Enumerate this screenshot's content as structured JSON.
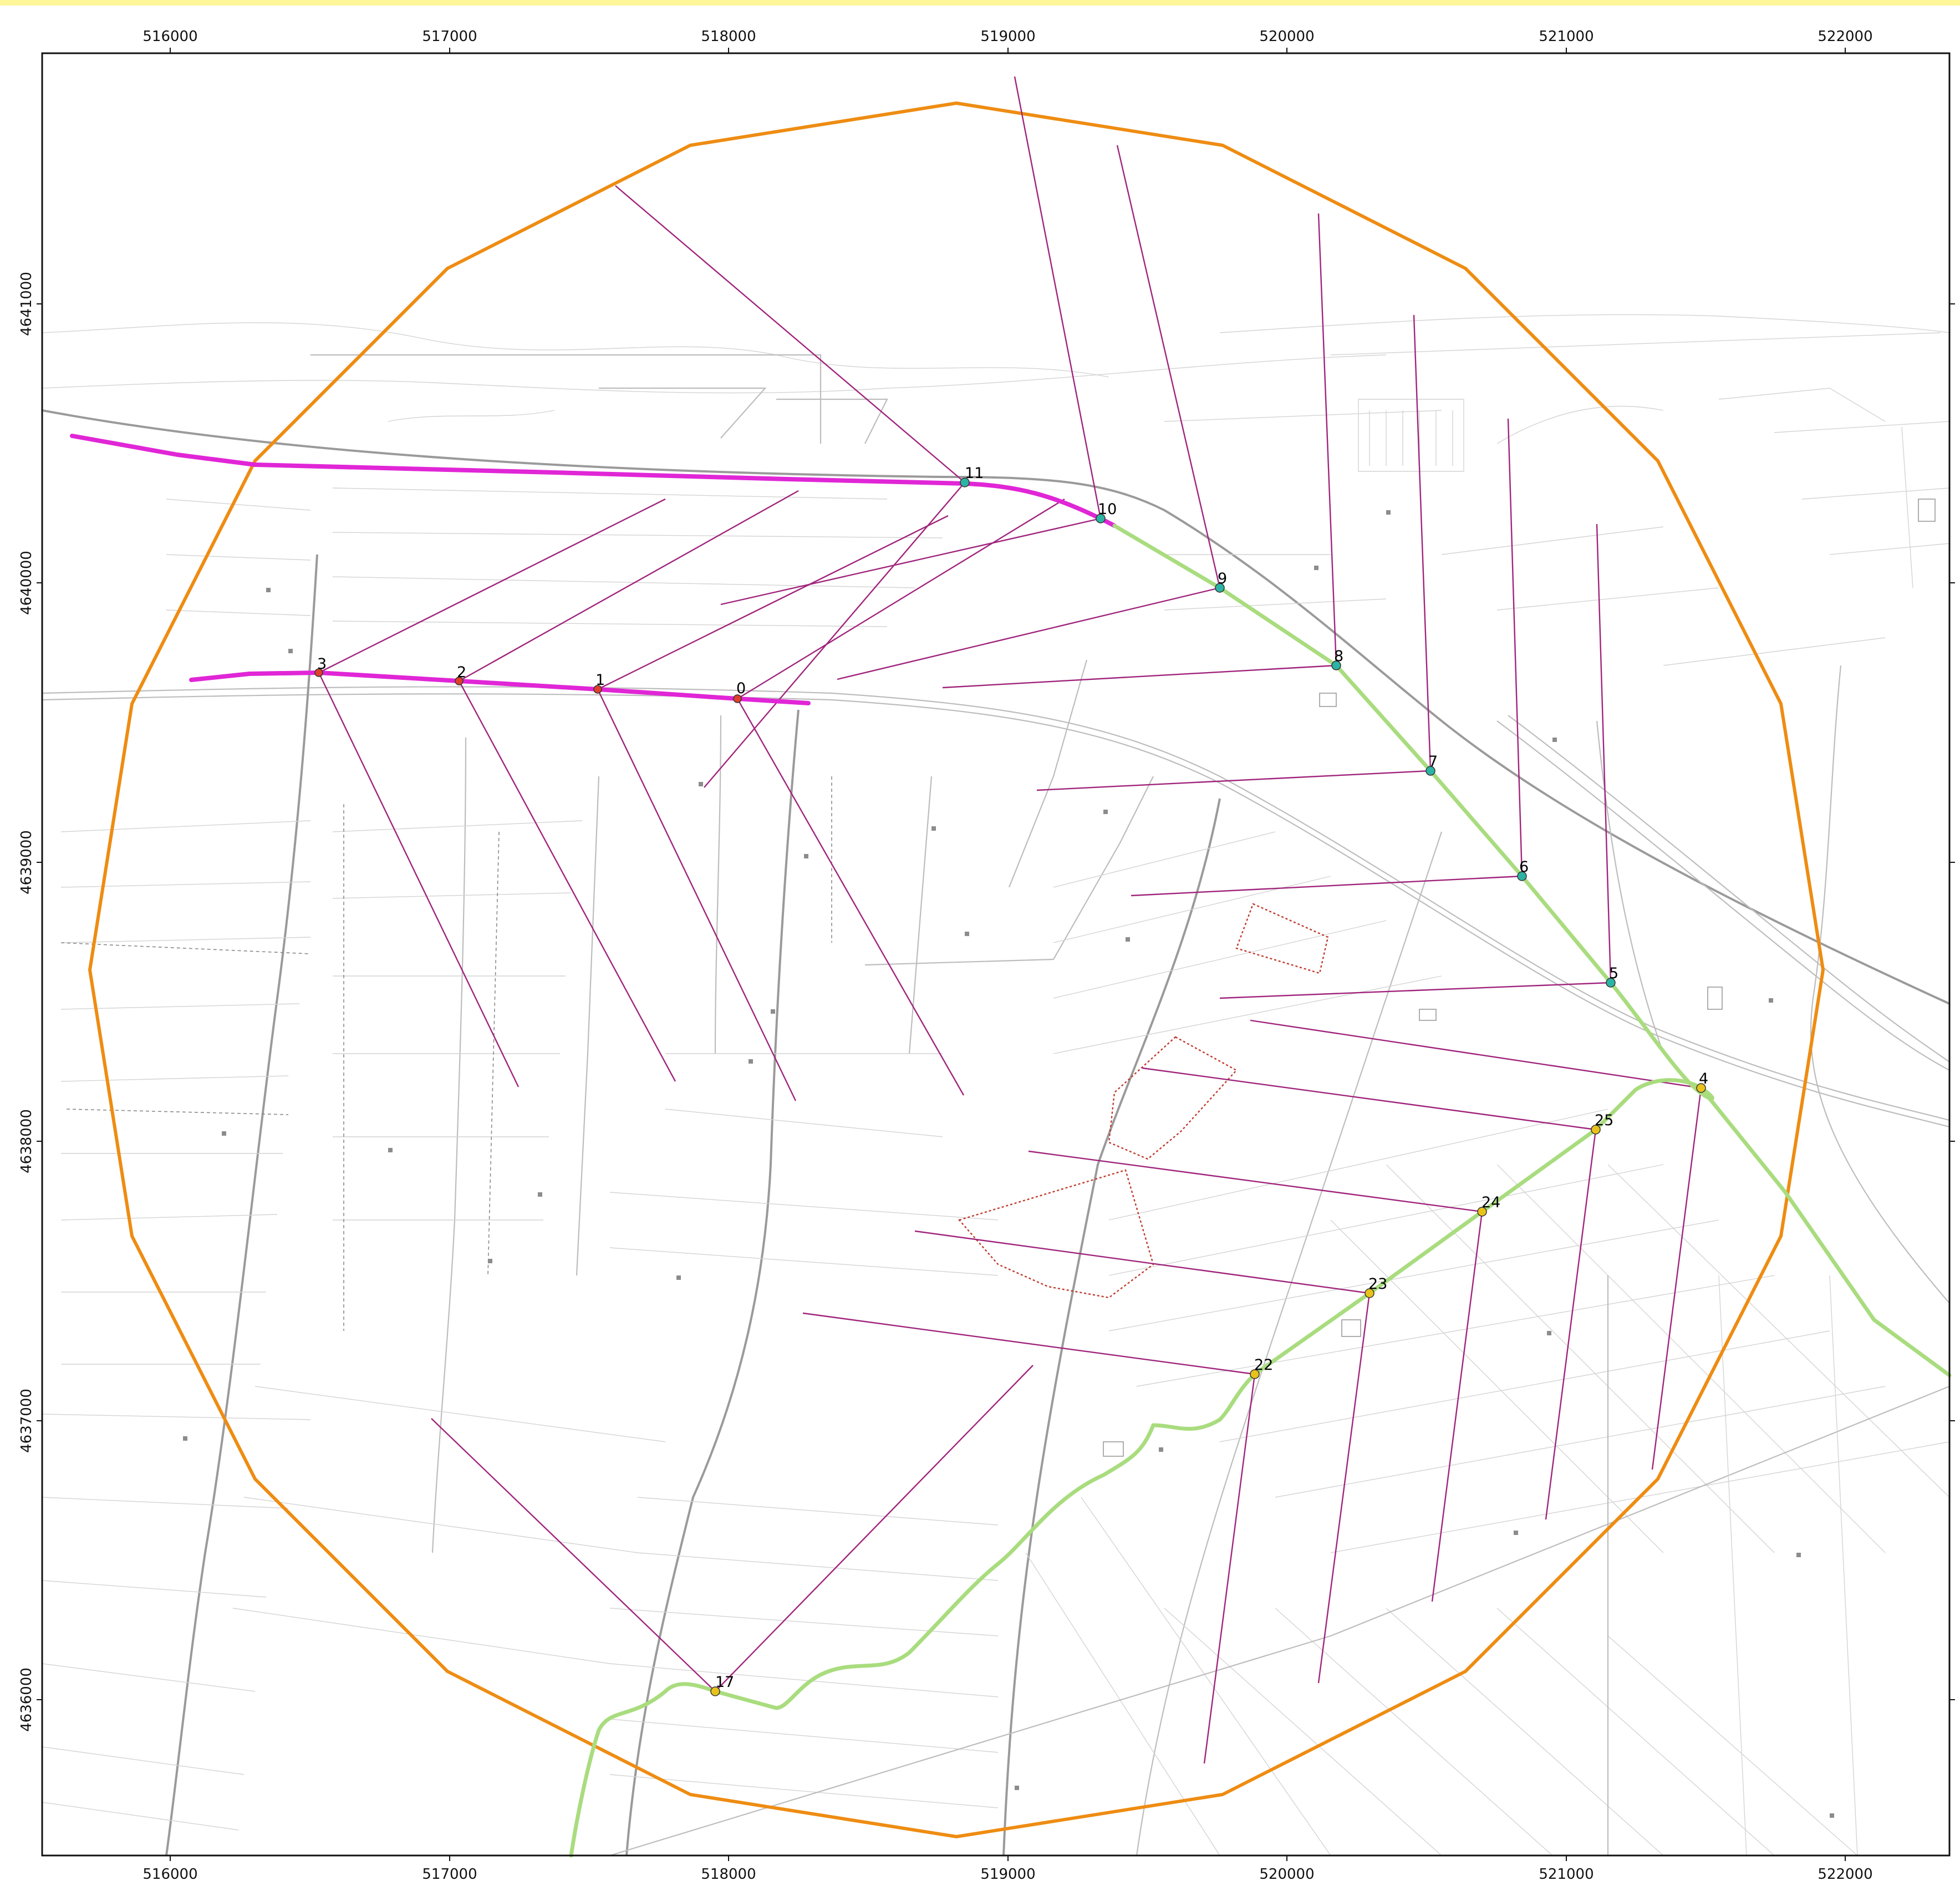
{
  "map": {
    "x_ticks": [
      "516000",
      "517000",
      "518000",
      "519000",
      "520000",
      "521000",
      "522000"
    ],
    "y_ticks": [
      "4641000",
      "4640000",
      "4639000",
      "4638000",
      "4637000",
      "4636000"
    ],
    "colors": {
      "buffer_circle": "#ee8c12",
      "magenta_route": "#e026d6",
      "green_route": "#a9dc7e",
      "sight_lines": "#a0247c",
      "teal_points": "#2bb3a3",
      "red_points": "#e0402a",
      "yellow_points": "#e8c21a",
      "dotted_areas": "#c0392b"
    },
    "points": [
      {
        "label": "0",
        "color": "red"
      },
      {
        "label": "1",
        "color": "red"
      },
      {
        "label": "2",
        "color": "red"
      },
      {
        "label": "3",
        "color": "red"
      },
      {
        "label": "4",
        "color": "yellow"
      },
      {
        "label": "5",
        "color": "teal"
      },
      {
        "label": "6",
        "color": "teal"
      },
      {
        "label": "7",
        "color": "teal"
      },
      {
        "label": "8",
        "color": "teal"
      },
      {
        "label": "9",
        "color": "teal"
      },
      {
        "label": "10",
        "color": "teal"
      },
      {
        "label": "11",
        "color": "teal"
      },
      {
        "label": "17",
        "color": "yellow"
      },
      {
        "label": "22",
        "color": "yellow"
      },
      {
        "label": "23",
        "color": "yellow"
      },
      {
        "label": "24",
        "color": "yellow"
      },
      {
        "label": "25",
        "color": "yellow"
      }
    ]
  }
}
